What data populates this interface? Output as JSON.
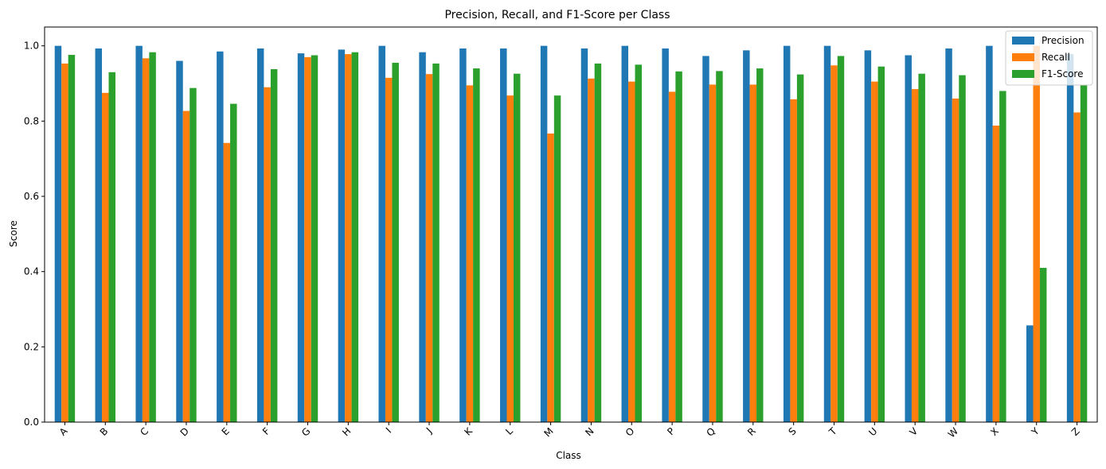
{
  "chart_data": {
    "type": "bar",
    "title": "Precision, Recall, and F1-Score per Class",
    "xlabel": "Class",
    "ylabel": "Score",
    "ylim": [
      0,
      1.05
    ],
    "yticks": [
      "0.0",
      "0.2",
      "0.4",
      "0.6",
      "0.8",
      "1.0"
    ],
    "grid": false,
    "legend_position": "top-right",
    "x_tick_rotation": "45",
    "categories": [
      "A",
      "B",
      "C",
      "D",
      "E",
      "F",
      "G",
      "H",
      "I",
      "J",
      "K",
      "L",
      "M",
      "N",
      "O",
      "P",
      "Q",
      "R",
      "S",
      "T",
      "U",
      "V",
      "W",
      "X",
      "Y",
      "Z"
    ],
    "series": [
      {
        "name": "Precision",
        "color": "#1f77b4",
        "values": [
          1.0,
          0.993,
          1.0,
          0.96,
          0.985,
          0.993,
          0.98,
          0.99,
          1.0,
          0.983,
          0.993,
          0.993,
          1.0,
          0.993,
          1.0,
          0.993,
          0.973,
          0.988,
          1.0,
          1.0,
          0.988,
          0.975,
          0.993,
          1.0,
          0.257,
          0.978
        ]
      },
      {
        "name": "Recall",
        "color": "#ff7f0e",
        "values": [
          0.953,
          0.875,
          0.967,
          0.827,
          0.742,
          0.89,
          0.97,
          0.978,
          0.915,
          0.925,
          0.895,
          0.868,
          0.767,
          0.913,
          0.905,
          0.878,
          0.897,
          0.897,
          0.858,
          0.948,
          0.905,
          0.885,
          0.86,
          0.788,
          1.0,
          0.823
        ]
      },
      {
        "name": "F1-Score",
        "color": "#2ca02c",
        "values": [
          0.976,
          0.93,
          0.983,
          0.888,
          0.846,
          0.938,
          0.975,
          0.983,
          0.955,
          0.953,
          0.94,
          0.926,
          0.868,
          0.953,
          0.95,
          0.932,
          0.933,
          0.94,
          0.924,
          0.973,
          0.945,
          0.926,
          0.922,
          0.88,
          0.41,
          0.895
        ]
      }
    ]
  }
}
